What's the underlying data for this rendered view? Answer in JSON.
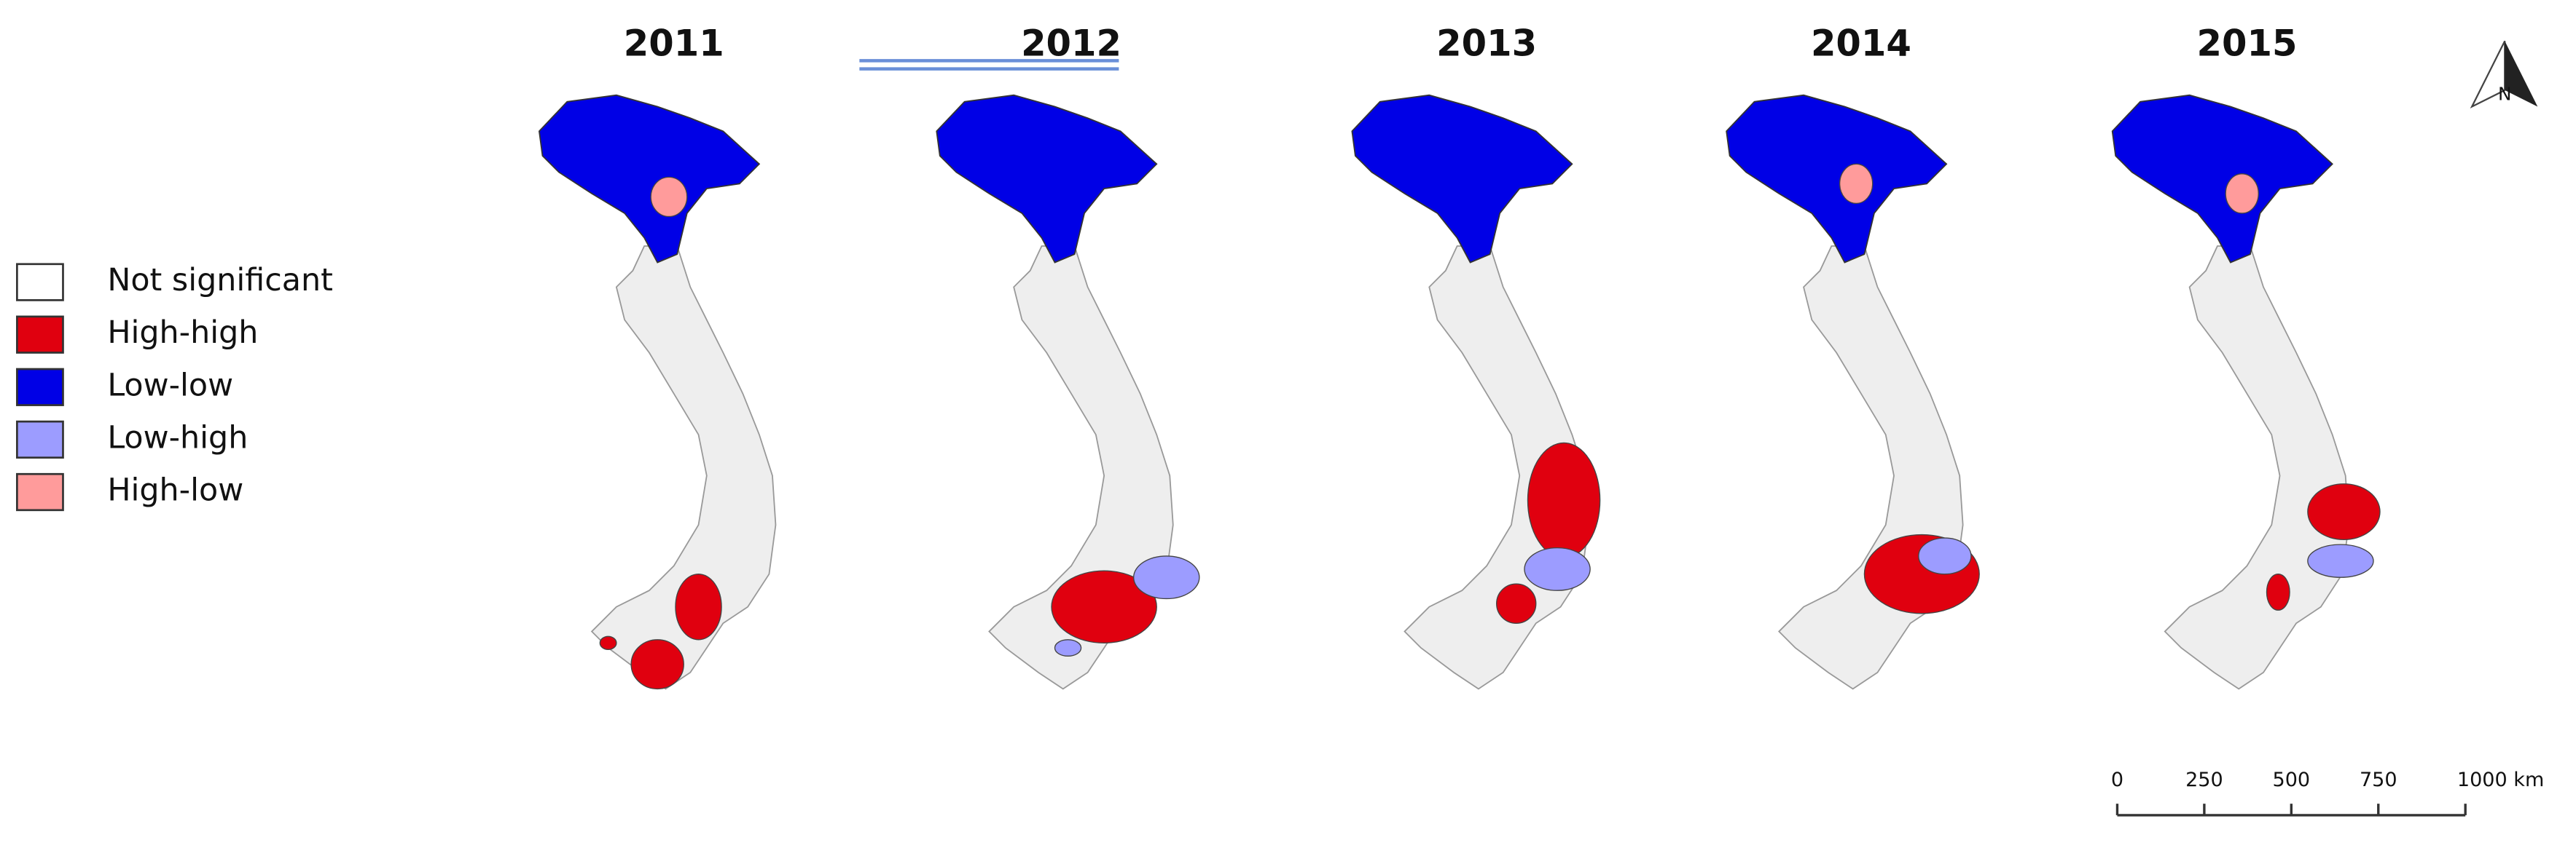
{
  "titles": [
    "2011",
    "2012",
    "2013",
    "2014",
    "2015"
  ],
  "legend": [
    {
      "label": "Not significant",
      "color": "#ffffff"
    },
    {
      "label": "High-high",
      "color": "#e0000f"
    },
    {
      "label": "Low-low",
      "color": "#0000e6"
    },
    {
      "label": "Low-high",
      "color": "#9c9cff"
    },
    {
      "label": "High-low",
      "color": "#ff9b9b"
    }
  ],
  "north_arrow": "N",
  "scale_bar": [
    "0",
    "250",
    "500",
    "750",
    "1000 km"
  ]
}
